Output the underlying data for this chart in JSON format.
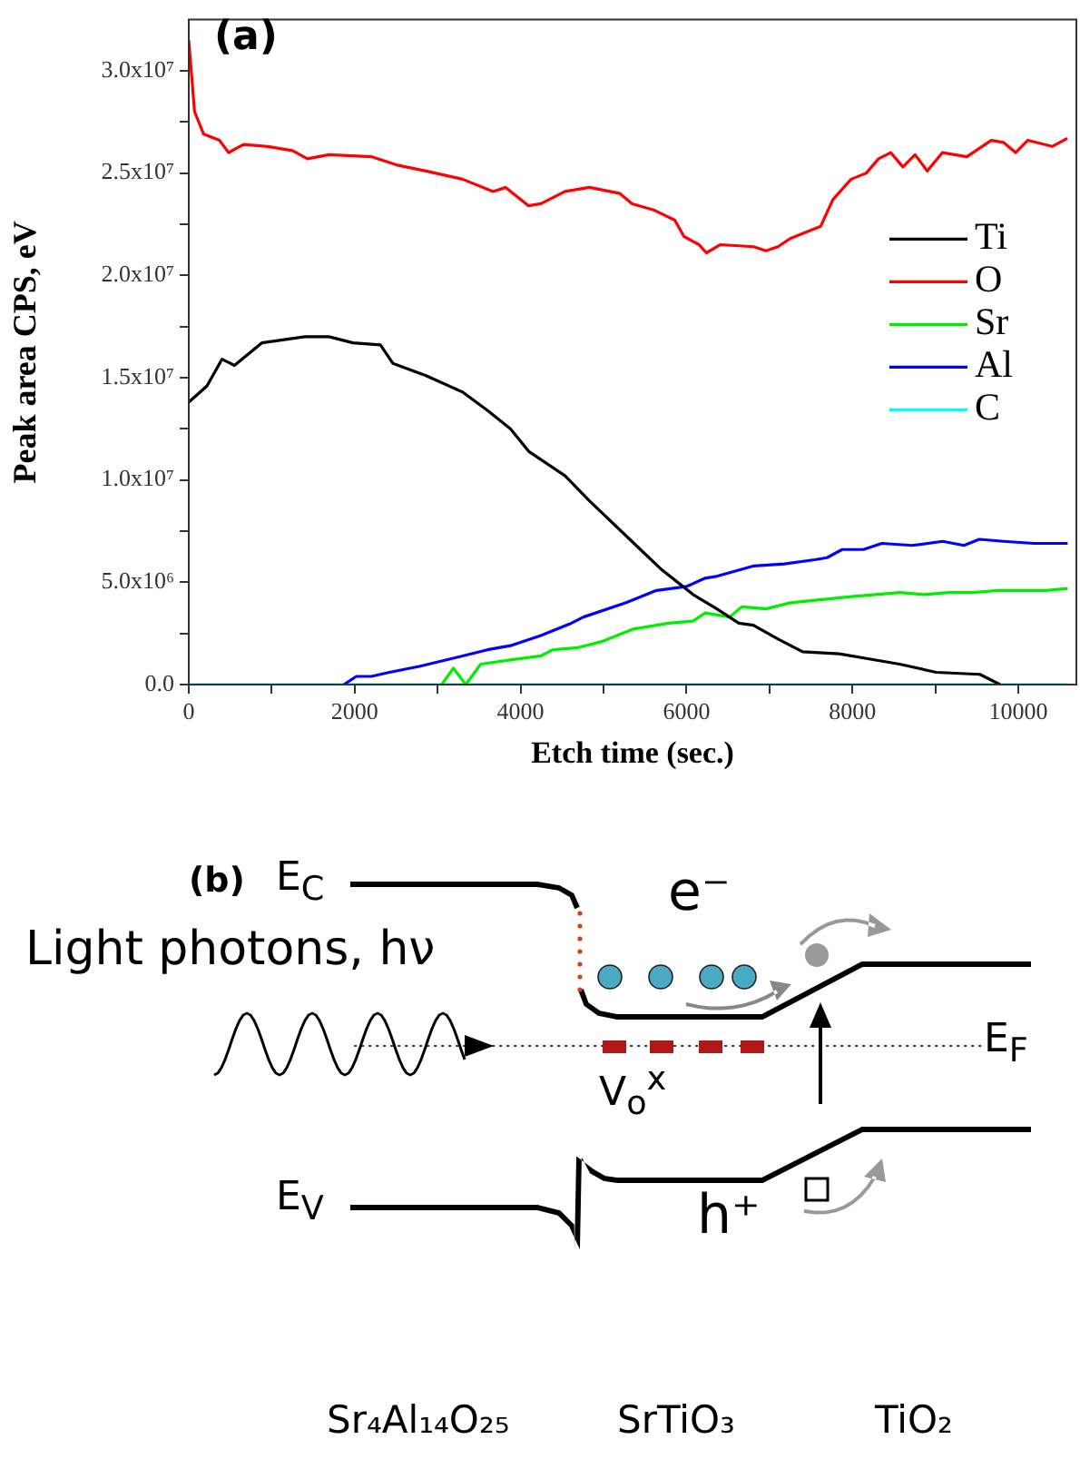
{
  "chart_data": {
    "type": "line",
    "xlabel": "Etch time (sec.)",
    "ylabel": "Peak area CPS, eV",
    "xlim": [
      0,
      10700
    ],
    "ylim": [
      0,
      32500000
    ],
    "xticks": [
      0,
      {
        "value": 1000,
        "label": null
      },
      2000,
      {
        "value": 3000,
        "label": null
      },
      4000,
      {
        "value": 5000,
        "label": null
      },
      6000,
      {
        "value": 7000,
        "label": null
      },
      8000,
      {
        "value": 9000,
        "label": null
      },
      10000
    ],
    "yticks": [
      {
        "value": 0,
        "label": "0.0"
      },
      {
        "value": 2500000,
        "label": null
      },
      {
        "value": 5000000,
        "label": "5.0x10⁶"
      },
      {
        "value": 7500000,
        "label": null
      },
      {
        "value": 10000000,
        "label": "1.0x10⁷"
      },
      {
        "value": 12500000,
        "label": null
      },
      {
        "value": 15000000,
        "label": "1.5x10⁷"
      },
      {
        "value": 17500000,
        "label": null
      },
      {
        "value": 20000000,
        "label": "2.0x10⁷"
      },
      {
        "value": 22500000,
        "label": null
      },
      {
        "value": 25000000,
        "label": "2.5x10⁷"
      },
      {
        "value": 27500000,
        "label": null
      },
      {
        "value": 30000000,
        "label": "3.0x10⁷"
      }
    ],
    "grid": false,
    "legend": "right",
    "marker": "none",
    "series": [
      {
        "name": "Ti",
        "color": "#000000",
        "x": [
          0,
          220,
          400,
          550,
          880,
          1400,
          1690,
          1980,
          2310,
          2460,
          2860,
          3300,
          3600,
          3877,
          4097,
          4537,
          4824,
          5419,
          5705,
          6079,
          6366,
          6630,
          6806,
          7114,
          7400,
          7841,
          8282,
          8568,
          9009,
          9537,
          9780
        ],
        "values": [
          13800000,
          14600000,
          15900000,
          15600000,
          16700000,
          17000000,
          17000000,
          16700000,
          16600000,
          15700000,
          15100000,
          14300000,
          13400000,
          12500000,
          11400000,
          10200000,
          9000000,
          6700000,
          5600000,
          4400000,
          3700000,
          3000000,
          2900000,
          2200000,
          1600000,
          1500000,
          1200000,
          1000000,
          600000,
          500000,
          0
        ]
      },
      {
        "name": "O",
        "color": "#ff0000",
        "x": [
          0,
          70,
          180,
          370,
          480,
          660,
          950,
          1250,
          1430,
          1690,
          2200,
          2500,
          2860,
          3300,
          3670,
          3820,
          4097,
          4244,
          4537,
          4830,
          5198,
          5345,
          5602,
          5859,
          5970,
          6152,
          6240,
          6410,
          6810,
          6957,
          7103,
          7250,
          7618,
          7765,
          7985,
          8168,
          8315,
          8462,
          8609,
          8756,
          8902,
          9086,
          9380,
          9674,
          9820,
          9967,
          10114,
          10408,
          10591
        ],
        "values": [
          31500000,
          28000000,
          26900000,
          26600000,
          26000000,
          26400000,
          26300000,
          26100000,
          25700000,
          25900000,
          25800000,
          25400000,
          25100000,
          24700000,
          24100000,
          24300000,
          23400000,
          23500000,
          24100000,
          24300000,
          24000000,
          23500000,
          23200000,
          22700000,
          21900000,
          21500000,
          21100000,
          21500000,
          21400000,
          21200000,
          21400000,
          21800000,
          22400000,
          23700000,
          24700000,
          25000000,
          25700000,
          26000000,
          25300000,
          25900000,
          25100000,
          26000000,
          25800000,
          26600000,
          26500000,
          26000000,
          26600000,
          26300000,
          26700000
        ]
      },
      {
        "name": "Sr",
        "color": "#00ee00",
        "x": [
          3050,
          3190,
          3340,
          3520,
          3877,
          4244,
          4390,
          4684,
          4978,
          5345,
          5785,
          6079,
          6226,
          6520,
          6667,
          6960,
          7254,
          7988,
          8575,
          8869,
          9163,
          9457,
          9750,
          10044,
          10338,
          10595
        ],
        "values": [
          0,
          800000,
          0,
          1000000,
          1200000,
          1400000,
          1700000,
          1800000,
          2100000,
          2700000,
          3000000,
          3100000,
          3500000,
          3300000,
          3800000,
          3700000,
          4000000,
          4300000,
          4500000,
          4400000,
          4500000,
          4500000,
          4600000,
          4600000,
          4600000,
          4700000
        ]
      },
      {
        "name": "Al",
        "color": "#0000ff",
        "x": [
          1870,
          2020,
          2200,
          2420,
          2790,
          3300,
          3600,
          3877,
          4244,
          4611,
          4758,
          5272,
          5639,
          6006,
          6226,
          6373,
          6813,
          7180,
          7547,
          7694,
          7877,
          8134,
          8354,
          8721,
          9088,
          9345,
          9529,
          9822,
          10189,
          10595
        ],
        "values": [
          0,
          400000,
          400000,
          600000,
          900000,
          1400000,
          1700000,
          1900000,
          2400000,
          3000000,
          3300000,
          4000000,
          4600000,
          4800000,
          5200000,
          5300000,
          5800000,
          5900000,
          6100000,
          6200000,
          6600000,
          6600000,
          6900000,
          6800000,
          7000000,
          6800000,
          7100000,
          7000000,
          6900000,
          6900000
        ]
      },
      {
        "name": "C",
        "color": "#00ffff",
        "x": [
          0,
          10595
        ],
        "values": [
          0,
          0
        ]
      }
    ],
    "annotations": [
      "(a)",
      "(b)",
      "E$_{C}$",
      "Light photons, hν",
      "e⁻",
      "V$_{o}$$^{x}$",
      "E$_{F}$",
      "E$_{V}$",
      "h⁺",
      "Sr₄Al₁₄O₂₅",
      "SrTiO₃",
      "TiO₂"
    ]
  }
}
